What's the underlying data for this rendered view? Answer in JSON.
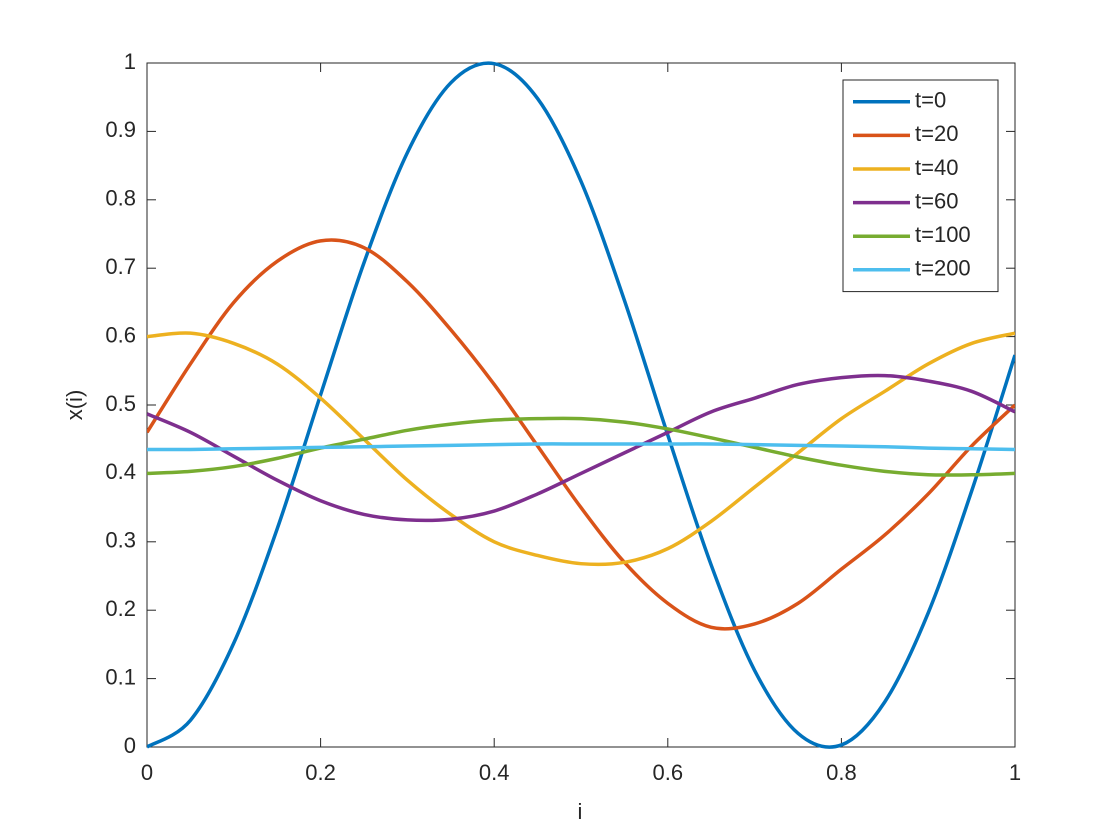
{
  "chart_data": {
    "type": "line",
    "xlabel": "i",
    "ylabel": "x(i)",
    "x": [
      0,
      0.05,
      0.1,
      0.15,
      0.2,
      0.25,
      0.3,
      0.35,
      0.4,
      0.45,
      0.5,
      0.55,
      0.6,
      0.65,
      0.7,
      0.75,
      0.8,
      0.85,
      0.9,
      0.95,
      1
    ],
    "series": [
      {
        "name": "t=0",
        "color": "#0072bd",
        "values": [
          0,
          0.039,
          0.152,
          0.319,
          0.515,
          0.708,
          0.869,
          0.971,
          0.999,
          0.948,
          0.827,
          0.653,
          0.456,
          0.266,
          0.112,
          0.02,
          0.003,
          0.066,
          0.196,
          0.374,
          0.573
        ]
      },
      {
        "name": "t=20",
        "color": "#d95319",
        "values": [
          0.46,
          0.56,
          0.65,
          0.71,
          0.74,
          0.73,
          0.68,
          0.61,
          0.53,
          0.44,
          0.35,
          0.27,
          0.21,
          0.175,
          0.18,
          0.21,
          0.26,
          0.31,
          0.37,
          0.44,
          0.5
        ]
      },
      {
        "name": "t=40",
        "color": "#edb120",
        "values": [
          0.6,
          0.605,
          0.59,
          0.56,
          0.51,
          0.45,
          0.39,
          0.34,
          0.3,
          0.28,
          0.268,
          0.27,
          0.29,
          0.33,
          0.38,
          0.43,
          0.48,
          0.52,
          0.56,
          0.59,
          0.605
        ]
      },
      {
        "name": "t=60",
        "color": "#7e2f8e",
        "values": [
          0.487,
          0.46,
          0.425,
          0.39,
          0.36,
          0.34,
          0.332,
          0.333,
          0.345,
          0.37,
          0.4,
          0.43,
          0.46,
          0.49,
          0.51,
          0.53,
          0.54,
          0.543,
          0.535,
          0.52,
          0.49
        ]
      },
      {
        "name": "t=100",
        "color": "#77ac30",
        "values": [
          0.4,
          0.403,
          0.41,
          0.422,
          0.437,
          0.45,
          0.463,
          0.472,
          0.478,
          0.48,
          0.48,
          0.475,
          0.465,
          0.452,
          0.438,
          0.424,
          0.412,
          0.403,
          0.398,
          0.398,
          0.4
        ]
      },
      {
        "name": "t=200",
        "color": "#4dbeee",
        "values": [
          0.435,
          0.435,
          0.436,
          0.437,
          0.438,
          0.439,
          0.44,
          0.441,
          0.442,
          0.443,
          0.443,
          0.443,
          0.443,
          0.443,
          0.442,
          0.441,
          0.44,
          0.439,
          0.437,
          0.436,
          0.435
        ]
      }
    ],
    "xlim": [
      0,
      1
    ],
    "xticks": [
      0,
      0.2,
      0.4,
      0.6,
      0.8,
      1
    ],
    "ylim": [
      0,
      1
    ],
    "yticks": [
      0,
      0.1,
      0.2,
      0.3,
      0.4,
      0.5,
      0.6,
      0.7,
      0.8,
      0.9,
      1
    ],
    "legend": "top-right",
    "grid": false
  }
}
